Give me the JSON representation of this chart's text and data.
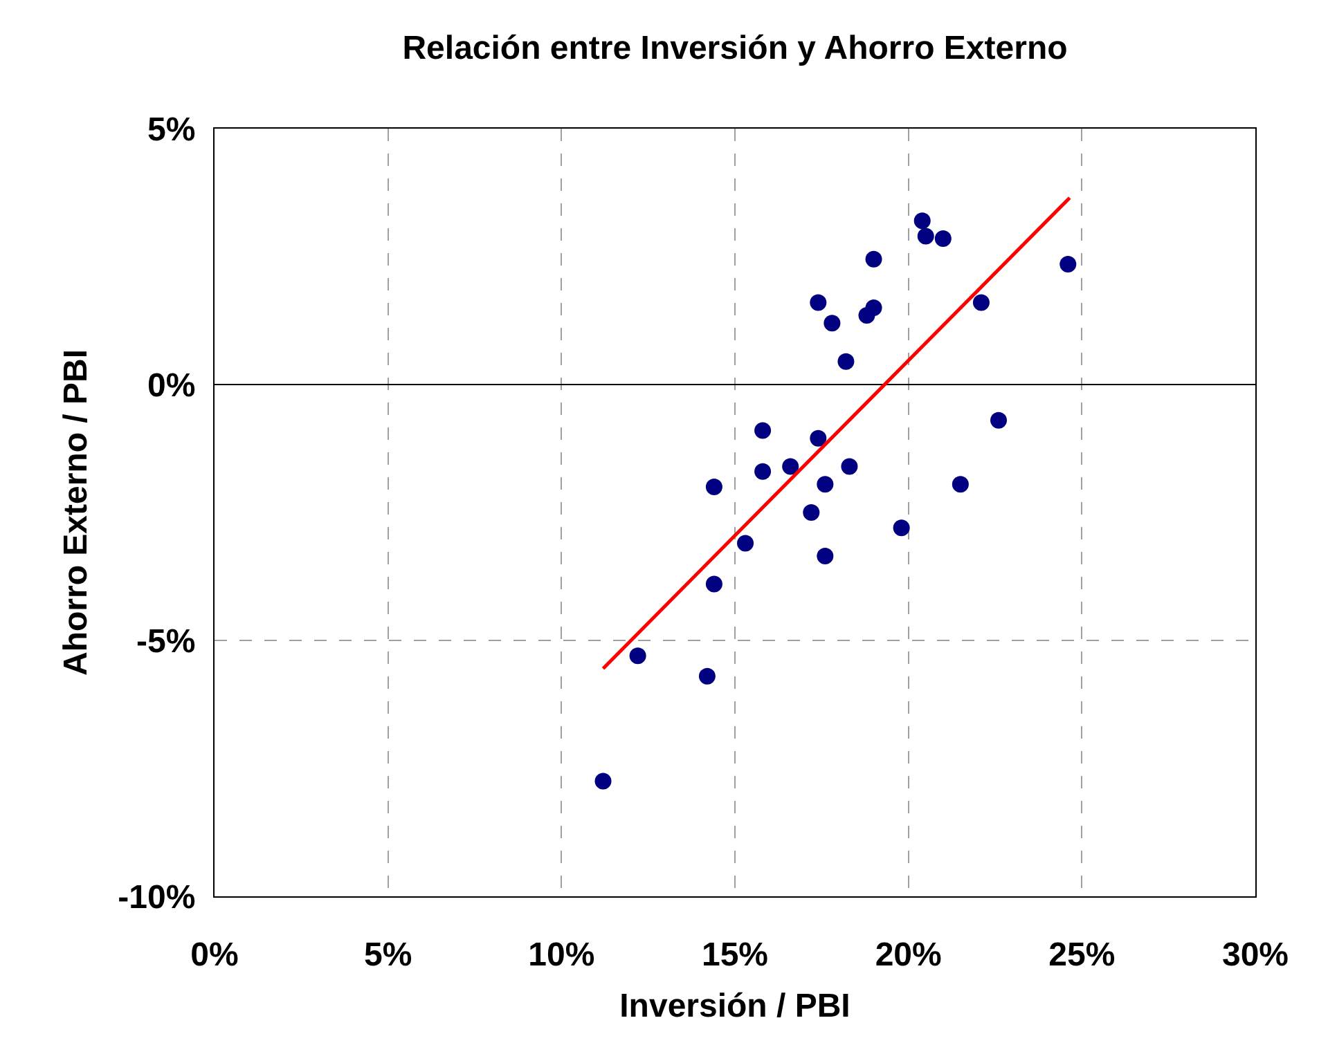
{
  "chart_data": {
    "type": "scatter",
    "title": "Relación entre Inversión y Ahorro Externo",
    "xlabel": "Inversión / PBI",
    "ylabel": "Ahorro Externo / PBI",
    "xlim": [
      0,
      30
    ],
    "ylim": [
      -10,
      5
    ],
    "xticks": [
      {
        "value": 0,
        "label": "0%"
      },
      {
        "value": 5,
        "label": "5%"
      },
      {
        "value": 10,
        "label": "10%"
      },
      {
        "value": 15,
        "label": "15%"
      },
      {
        "value": 20,
        "label": "20%"
      },
      {
        "value": 25,
        "label": "25%"
      },
      {
        "value": 30,
        "label": "30%"
      }
    ],
    "yticks": [
      {
        "value": -10,
        "label": "-10%"
      },
      {
        "value": -5,
        "label": "-5%"
      },
      {
        "value": 0,
        "label": "0%"
      },
      {
        "value": 5,
        "label": "5%"
      }
    ],
    "grid": true,
    "marker": "circle",
    "series": [
      {
        "color": "#000080",
        "x": [
          11.2,
          12.2,
          14.2,
          14.4,
          14.4,
          15.3,
          15.8,
          15.8,
          16.6,
          17.2,
          17.4,
          17.4,
          17.6,
          17.6,
          17.8,
          18.3,
          18.2,
          18.8,
          19.0,
          19.0,
          19.8,
          20.4,
          20.5,
          21.0,
          21.5,
          22.1,
          22.6,
          24.6
        ],
        "values": [
          -7.75,
          -5.3,
          -5.7,
          -2.0,
          -3.9,
          -3.1,
          -0.9,
          -1.7,
          -1.6,
          -2.5,
          1.6,
          -1.05,
          -1.95,
          -3.35,
          1.2,
          -1.6,
          0.45,
          1.35,
          1.5,
          2.45,
          -2.8,
          3.2,
          2.9,
          2.85,
          -1.95,
          1.6,
          -0.7,
          2.35
        ]
      },
      {
        "type": "line",
        "color": "#ff0000",
        "marker": "none",
        "line_style": "solid",
        "x": [
          11.2,
          24.65
        ],
        "values": [
          -5.55,
          3.65
        ]
      }
    ]
  }
}
